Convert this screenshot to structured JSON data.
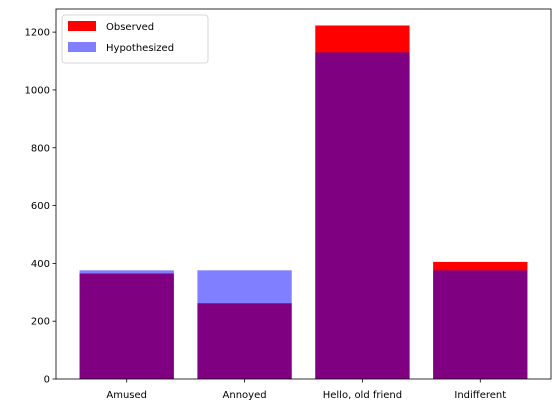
{
  "chart_data": {
    "type": "bar",
    "categories": [
      "Amused",
      "Annoyed",
      "Hello, old friend",
      "Indifferent"
    ],
    "series": [
      {
        "name": "Observed",
        "color": "#ff0000",
        "values": [
          365,
          262,
          1223,
          405
        ]
      },
      {
        "name": "Hypothesized",
        "color": "#0000ff",
        "opacity": 0.5,
        "values": [
          376,
          376,
          1130,
          376
        ]
      }
    ],
    "overlap_color": "#800080",
    "ylim": [
      0,
      1280
    ],
    "yticks": [
      0,
      200,
      400,
      600,
      800,
      1000,
      1200
    ],
    "legend_position": "top-left",
    "grid": false,
    "title": "",
    "xlabel": "",
    "ylabel": ""
  }
}
